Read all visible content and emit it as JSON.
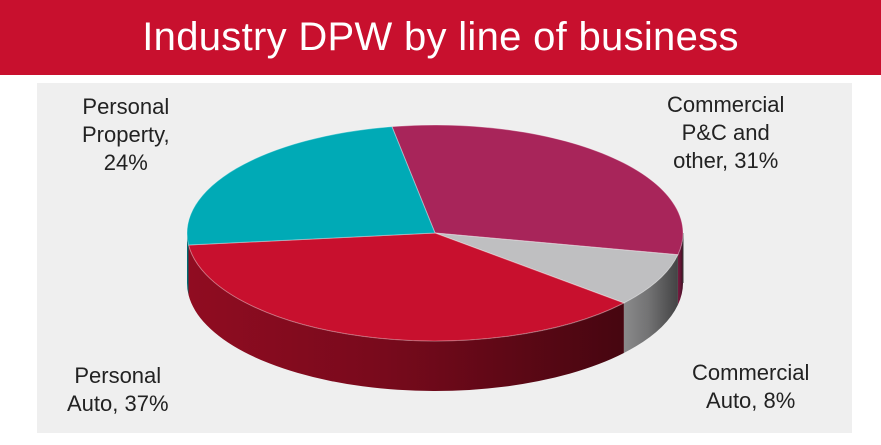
{
  "chart_data": {
    "type": "pie",
    "title": "Industry DPW by line of business",
    "slices": [
      {
        "name": "Commercial P&C and other",
        "value": 31,
        "color": "#a8255a",
        "label_lines": [
          "Commercial",
          "P&C and",
          "other, 31%"
        ]
      },
      {
        "name": "Commercial Auto",
        "value": 8,
        "color": "#bfbfc1",
        "label_lines": [
          "Commercial",
          "Auto, 8%"
        ]
      },
      {
        "name": "Personal Auto",
        "value": 37,
        "color": "#c8102e",
        "label_lines": [
          "Personal",
          "Auto, 37%"
        ]
      },
      {
        "name": "Personal Property",
        "value": 24,
        "color": "#00aab6",
        "label_lines": [
          "Personal",
          "Property,",
          "24%"
        ]
      }
    ],
    "style": "3d-pie",
    "legend": "none"
  },
  "colors": {
    "title_bar": "#c8102e",
    "title_text": "#ffffff",
    "plot_background": "#efefef"
  }
}
